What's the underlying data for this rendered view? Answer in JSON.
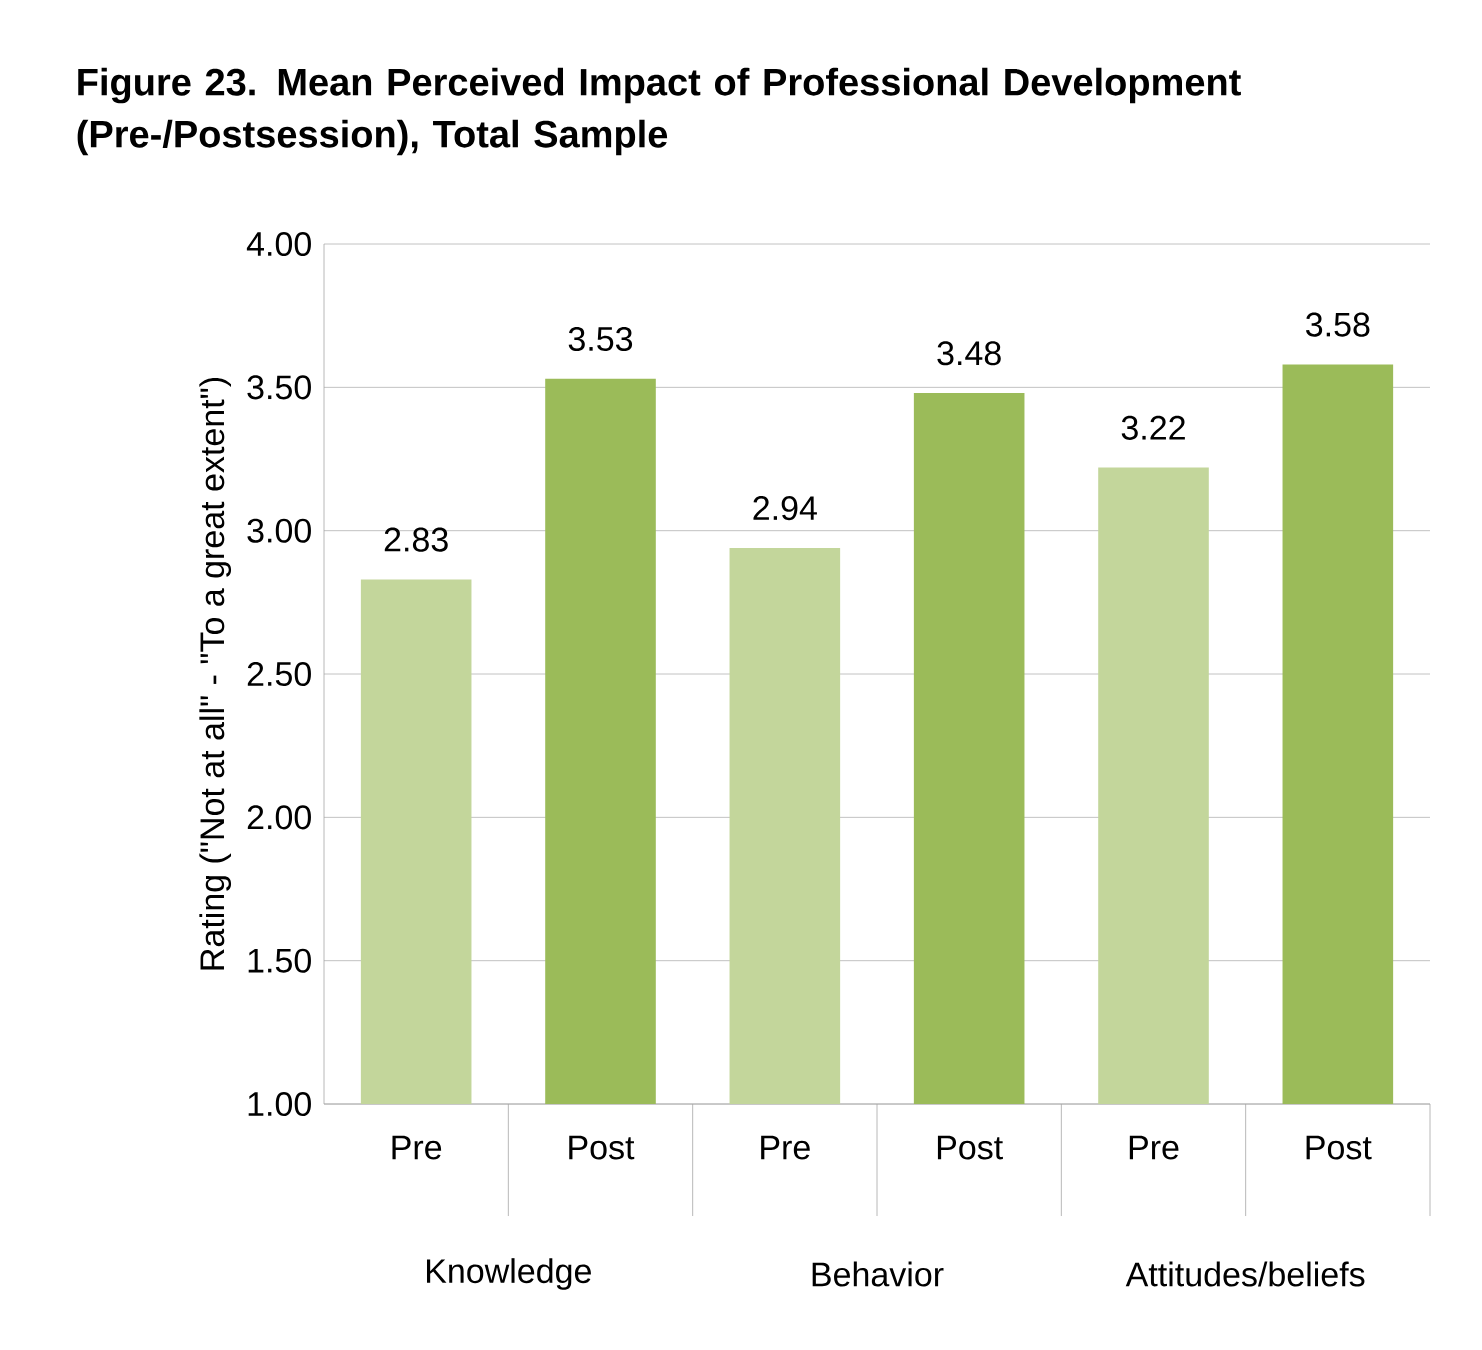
{
  "chart_data": {
    "type": "bar",
    "title": "Figure 23.    Mean Perceived Impact of Professional Development (Pre-/Postsession), Total Sample",
    "ylabel": "Rating (\"Not at all\" - \"To a great extent\")",
    "categories": [
      "Pre",
      "Post",
      "Pre",
      "Post",
      "Pre",
      "Post"
    ],
    "values": [
      2.83,
      3.53,
      2.94,
      3.48,
      3.22,
      3.58
    ],
    "colors": [
      "#c3d69b",
      "#9bbb59",
      "#c3d69b",
      "#9bbb59",
      "#c3d69b",
      "#9bbb59"
    ],
    "annotations": [
      "Knowledge",
      "Behavior",
      "Attitudes/beliefs"
    ],
    "ylim": [
      1,
      4
    ],
    "yticks": [
      {
        "value": 1,
        "label": "1.00"
      },
      {
        "value": 1.5,
        "label": "1.50"
      },
      {
        "value": 2,
        "label": "2.00"
      },
      {
        "value": 2.5,
        "label": "2.50"
      },
      {
        "value": 3,
        "label": "3.00"
      },
      {
        "value": 3.5,
        "label": "3.50"
      },
      {
        "value": 4,
        "label": "4.00"
      }
    ],
    "grid": "y",
    "data_labels": true
  }
}
